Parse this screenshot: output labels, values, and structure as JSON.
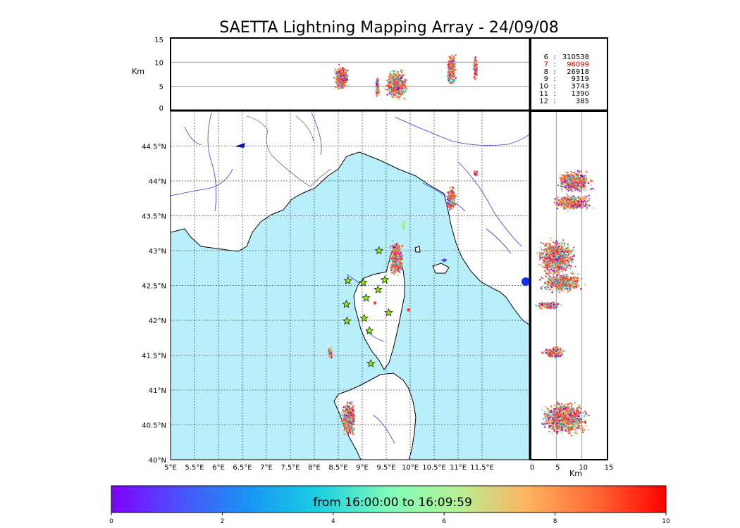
{
  "chart_data": {
    "type": "scatter",
    "title": "SAETTA Lightning Mapping Array - 24/09/08",
    "colorbar": {
      "label": "from 16:00:00 to 16:09:59",
      "range": [
        0,
        10
      ],
      "ticks": [
        "0",
        "2",
        "4",
        "6",
        "8",
        "10"
      ],
      "colormap": "rainbow"
    },
    "map": {
      "lon_range": [
        5,
        12.5
      ],
      "lat_range": [
        40,
        45
      ],
      "lon_ticks": [
        "5°E",
        "5.5°E",
        "6°E",
        "6.5°E",
        "7°E",
        "7.5°E",
        "8°E",
        "8.5°E",
        "9°E",
        "9.5°E",
        "10°E",
        "10.5°E",
        "11°E",
        "11.5°E"
      ],
      "lat_ticks": [
        "40°N",
        "40.5°N",
        "41°N",
        "41.5°N",
        "42°N",
        "42.5°N",
        "43°N",
        "43.5°N",
        "44°N",
        "44.5°N"
      ],
      "grid": true,
      "sea_color": "#b9eefb",
      "land_color": "#ffffff",
      "stations": [
        [
          8.7,
          42.57
        ],
        [
          9.02,
          42.54
        ],
        [
          9.47,
          42.58
        ],
        [
          9.33,
          42.44
        ],
        [
          9.08,
          42.32
        ],
        [
          8.67,
          42.23
        ],
        [
          9.04,
          42.03
        ],
        [
          8.68,
          41.99
        ],
        [
          9.55,
          42.11
        ],
        [
          9.15,
          41.85
        ],
        [
          9.18,
          41.38
        ],
        [
          9.35,
          43.0
        ]
      ],
      "clusters": [
        {
          "lon": 8.7,
          "lat": 40.6,
          "w": 0.32,
          "h": 0.55,
          "mix": "warm"
        },
        {
          "lon": 8.32,
          "lat": 41.54,
          "w": 0.12,
          "h": 0.17,
          "mix": "warm"
        },
        {
          "lon": 9.7,
          "lat": 42.9,
          "w": 0.3,
          "h": 0.55,
          "mix": "warm"
        },
        {
          "lon": 9.95,
          "lat": 42.16,
          "w": 0.05,
          "h": 0.04,
          "mix": "red"
        },
        {
          "lon": 9.25,
          "lat": 42.26,
          "w": 0.04,
          "h": 0.04,
          "mix": "red"
        },
        {
          "lon": 10.85,
          "lat": 43.75,
          "w": 0.22,
          "h": 0.4,
          "mix": "warm"
        },
        {
          "lon": 11.35,
          "lat": 44.12,
          "w": 0.1,
          "h": 0.08,
          "mix": "warm"
        },
        {
          "lon": 9.85,
          "lat": 43.37,
          "w": 0.08,
          "h": 0.18,
          "mix": "green"
        },
        {
          "lon": 10.7,
          "lat": 42.87,
          "w": 0.1,
          "h": 0.05,
          "mix": "blue"
        }
      ]
    },
    "altitude_panel_top": {
      "ylabel": "Km",
      "yticks": [
        "0",
        "5",
        "10",
        "15"
      ],
      "ylim": [
        0,
        15
      ],
      "hlines_km": [
        5,
        10
      ],
      "clusters": [
        {
          "lon": 8.55,
          "alt": 7.0,
          "w": 0.33,
          "h": 5.5
        },
        {
          "lon": 9.3,
          "alt": 5.0,
          "w": 0.08,
          "h": 4.5
        },
        {
          "lon": 9.7,
          "alt": 5.5,
          "w": 0.5,
          "h": 6.5
        },
        {
          "lon": 10.85,
          "alt": 8.5,
          "w": 0.2,
          "h": 8.0
        },
        {
          "lon": 11.35,
          "alt": 9.0,
          "w": 0.1,
          "h": 5.5
        }
      ]
    },
    "altitude_panel_right": {
      "xlabel": "Km",
      "xticks": [
        "0",
        "5",
        "10",
        "15"
      ],
      "xlim": [
        0,
        15
      ],
      "vlines_km": [
        5,
        10
      ],
      "clusters": [
        {
          "lat": 44.0,
          "alt": 8.5,
          "w": 8.0,
          "h": 0.35
        },
        {
          "lat": 43.7,
          "alt": 8.0,
          "w": 9.0,
          "h": 0.25
        },
        {
          "lat": 42.9,
          "alt": 5.0,
          "w": 8.5,
          "h": 0.6
        },
        {
          "lat": 42.55,
          "alt": 6.0,
          "w": 10.0,
          "h": 0.3
        },
        {
          "lat": 42.22,
          "alt": 3.5,
          "w": 6.0,
          "h": 0.12
        },
        {
          "lat": 41.55,
          "alt": 4.5,
          "w": 5.5,
          "h": 0.2
        },
        {
          "lat": 40.6,
          "alt": 6.5,
          "w": 10.5,
          "h": 0.55
        }
      ]
    },
    "station_counts": [
      {
        "n": "6",
        "count": "310538",
        "color": "#000000"
      },
      {
        "n": "7",
        "count": "96099",
        "color": "#e00000"
      },
      {
        "n": "8",
        "count": "26918",
        "color": "#000000"
      },
      {
        "n": "9",
        "count": "9319",
        "color": "#000000"
      },
      {
        "n": "10",
        "count": "3743",
        "color": "#000000"
      },
      {
        "n": "11",
        "count": "1390",
        "color": "#000000"
      },
      {
        "n": "12",
        "count": "385",
        "color": "#000000"
      }
    ]
  }
}
